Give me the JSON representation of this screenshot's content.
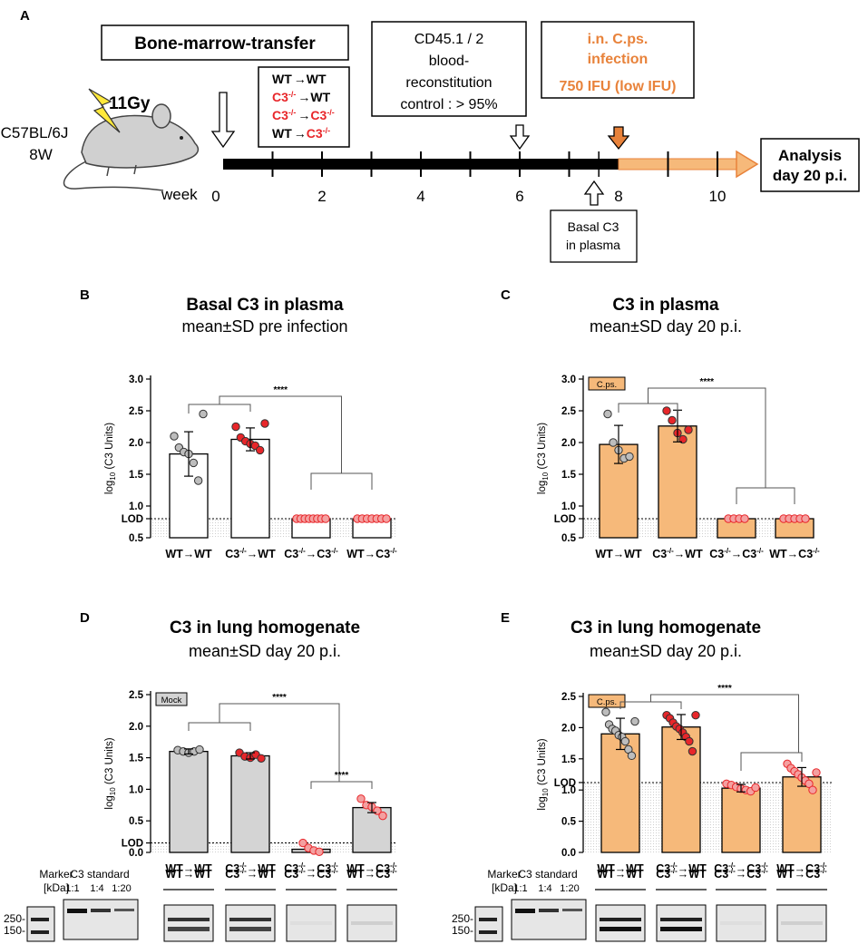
{
  "panelA": {
    "letter": "A",
    "bmt_title": "Bone-marrow-transfer",
    "mouse_strain": "C57BL/6J",
    "mouse_age": "8W",
    "irradiation": "11Gy",
    "groups": [
      {
        "donor": "WT",
        "recipient": "WT",
        "donor_ko": false,
        "recipient_ko": false
      },
      {
        "donor": "C3",
        "recipient": "WT",
        "donor_ko": true,
        "recipient_ko": false
      },
      {
        "donor": "C3",
        "recipient": "C3",
        "donor_ko": true,
        "recipient_ko": true
      },
      {
        "donor": "WT",
        "recipient": "C3",
        "donor_ko": false,
        "recipient_ko": true
      }
    ],
    "ko_superscript": "-/-",
    "reconst_lines": [
      "CD45.1 / 2",
      "blood-",
      "reconstitution",
      "control : > 95%"
    ],
    "infection_lines": [
      "i.n. C.ps.",
      "infection",
      "750 IFU (low IFU)"
    ],
    "basal_lines": [
      "Basal C3",
      "in plasma"
    ],
    "analysis_lines": [
      "Analysis",
      "day 20 p.i."
    ],
    "week_label": "week",
    "week_ticks": [
      "0",
      "2",
      "4",
      "6",
      "8",
      "10"
    ],
    "colors": {
      "orange": "#E8823A",
      "orange_light": "#F6B97A",
      "red": "#E8262A"
    }
  },
  "chart_data": [
    {
      "panel": "B",
      "type": "bar",
      "title": "Basal C3 in plasma",
      "subtitle": "mean±SD pre infection",
      "ylabel": "log10 (C3 Units)",
      "ylim": [
        0.5,
        3.0
      ],
      "yticks": [
        0.5,
        1.0,
        1.5,
        2.0,
        2.5,
        3.0
      ],
      "yticks_text": [
        "0.5",
        "1.0",
        "1.5",
        "2.0",
        "2.5",
        "3.0"
      ],
      "lod_value": 0.8,
      "lod_label": "LOD",
      "categories": [
        "WT→WT",
        "C3-/-→WT",
        "C3-/-→C3-/-",
        "WT→C3-/-"
      ],
      "values": [
        1.82,
        2.05,
        0.8,
        0.8
      ],
      "errors": [
        0.35,
        0.18,
        0,
        0
      ],
      "fill": "#ffffff",
      "badge": "",
      "significance": "****",
      "points": [
        [
          2.1,
          1.92,
          1.85,
          1.82,
          1.68,
          1.4,
          2.45
        ],
        [
          2.25,
          2.08,
          2.02,
          1.98,
          1.95,
          1.88,
          2.3
        ],
        [
          0.8,
          0.8,
          0.8,
          0.8,
          0.8,
          0.8,
          0.8,
          0.8
        ],
        [
          0.8,
          0.8,
          0.8,
          0.8,
          0.8,
          0.8,
          0.8
        ]
      ]
    },
    {
      "panel": "C",
      "type": "bar",
      "title": "C3 in plasma",
      "subtitle": "mean±SD day 20 p.i.",
      "ylabel": "log10 (C3 Units)",
      "ylim": [
        0.5,
        3.0
      ],
      "yticks": [
        0.5,
        1.0,
        1.5,
        2.0,
        2.5,
        3.0
      ],
      "yticks_text": [
        "0.5",
        "1.0",
        "1.5",
        "2.0",
        "2.5",
        "3.0"
      ],
      "lod_value": 0.8,
      "lod_label": "LOD",
      "categories": [
        "WT→WT",
        "C3-/-→WT",
        "C3-/-→C3-/-",
        "WT→C3-/-"
      ],
      "values": [
        1.97,
        2.26,
        0.8,
        0.8
      ],
      "errors": [
        0.3,
        0.25,
        0,
        0
      ],
      "fill": "#F6B97A",
      "badge": "C.ps.",
      "significance": "****",
      "points": [
        [
          2.45,
          2.0,
          1.88,
          1.75,
          1.78
        ],
        [
          2.5,
          2.35,
          2.15,
          2.05,
          2.2
        ],
        [
          0.8,
          0.8,
          0.8,
          0.8
        ],
        [
          0.8,
          0.8,
          0.8,
          0.8,
          0.8
        ]
      ]
    },
    {
      "panel": "D",
      "type": "bar",
      "title": "C3 in lung homogenate",
      "subtitle": "mean±SD day 20 p.i.",
      "ylabel": "log10 (C3  Units)",
      "ylim": [
        0.0,
        2.5
      ],
      "yticks": [
        0.0,
        0.5,
        1.0,
        1.5,
        2.0,
        2.5
      ],
      "yticks_text": [
        "0.0",
        "0.5",
        "1.0",
        "1.5",
        "2.0",
        "2.5"
      ],
      "lod_value": 0.15,
      "lod_label": "LOD",
      "categories": [
        "WT→WT",
        "C3-/-→WT",
        "C3-/-→C3-/-",
        "WT→C3-/-"
      ],
      "values": [
        1.6,
        1.53,
        0.05,
        0.71
      ],
      "errors": [
        0.04,
        0.05,
        0,
        0.08
      ],
      "fill": "#D4D4D4",
      "badge": "Mock",
      "significance": "****",
      "significance2": "****",
      "points": [
        [
          1.62,
          1.6,
          1.58,
          1.6,
          1.63
        ],
        [
          1.58,
          1.52,
          1.5,
          1.55,
          1.49
        ],
        [
          0.15,
          0.07,
          0.03,
          0.01
        ],
        [
          0.85,
          0.75,
          0.72,
          0.66,
          0.58
        ]
      ]
    },
    {
      "panel": "E",
      "type": "bar",
      "title": "C3 in lung homogenate",
      "subtitle": "mean±SD day 20 p.i.",
      "ylabel": "log10 (C3  Units)",
      "ylim": [
        0.0,
        2.5
      ],
      "yticks": [
        0.0,
        0.5,
        1.0,
        1.5,
        2.0,
        2.5
      ],
      "yticks_text": [
        "0.0",
        "0.5",
        "1.0",
        "1.5",
        "2.0",
        "2.5"
      ],
      "lod_value": 1.12,
      "lod_label": "LOD",
      "categories": [
        "WT→WT",
        "C3-/-→WT",
        "C3-/-→C3-/-",
        "WT→C3-/-"
      ],
      "values": [
        1.9,
        2.01,
        1.03,
        1.21
      ],
      "errors": [
        0.25,
        0.2,
        0.06,
        0.15
      ],
      "fill": "#F6B97A",
      "badge": "C.ps.",
      "significance": "****",
      "points": [
        [
          2.25,
          2.05,
          1.98,
          1.95,
          1.88,
          1.85,
          1.78,
          1.65,
          1.55,
          2.1
        ],
        [
          2.2,
          2.15,
          2.08,
          2.02,
          1.98,
          1.92,
          1.85,
          1.78,
          1.62,
          2.2
        ],
        [
          1.1,
          1.08,
          1.05,
          1.02,
          1.0,
          0.98,
          1.04
        ],
        [
          1.42,
          1.35,
          1.3,
          1.25,
          1.2,
          1.15,
          1.1,
          1.0,
          1.28
        ]
      ]
    }
  ],
  "blots": {
    "marker_lines": [
      "Marker",
      "[kDa]"
    ],
    "c3_standard": "C3 standard",
    "dilutions": [
      "1:1",
      "1:4",
      "1:20"
    ],
    "kda_250": "250-",
    "kda_150": "150-",
    "lane_labels": [
      "WT→WT",
      "C3-/-→WT",
      "C3-/-→C3-/-",
      "WT→C3-/-"
    ]
  }
}
